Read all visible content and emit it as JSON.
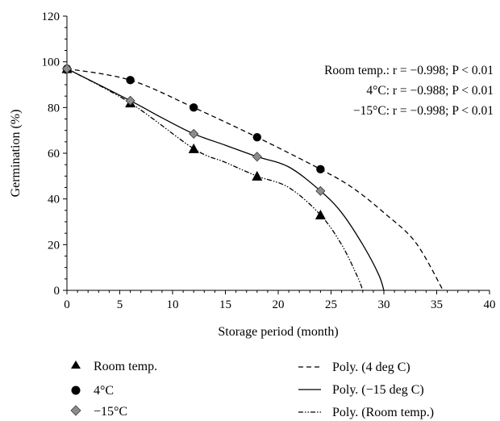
{
  "chart_data": {
    "type": "scatter",
    "xlabel": "Storage period (month)",
    "ylabel": "Germination (%)",
    "xlim": [
      0,
      40
    ],
    "ylim": [
      0,
      120
    ],
    "x_ticks": [
      "0",
      "5",
      "10",
      "15",
      "20",
      "25",
      "30",
      "35",
      "40"
    ],
    "y_ticks": [
      "0",
      "20",
      "40",
      "60",
      "80",
      "100",
      "120"
    ],
    "grid": false,
    "series": [
      {
        "name": "Room temp.",
        "marker": "triangle",
        "color": "#000000",
        "x": [
          0,
          6,
          12,
          18,
          24
        ],
        "y": [
          97,
          82,
          62,
          50,
          33
        ]
      },
      {
        "name": "4°C",
        "marker": "circle",
        "color": "#000000",
        "x": [
          0,
          6,
          12,
          18,
          24
        ],
        "y": [
          97,
          92,
          80,
          67,
          53
        ]
      },
      {
        "name": "−15°C",
        "marker": "diamond",
        "color": "#8c8c8c",
        "x": [
          0,
          6,
          12,
          18,
          24
        ],
        "y": [
          97,
          83,
          68.5,
          58.5,
          43.5
        ]
      }
    ],
    "trendlines": [
      {
        "name": "Poly. (4 deg C)",
        "style": "dashed",
        "x": [
          0,
          6,
          12,
          18,
          24,
          27,
          30,
          33,
          35.6
        ],
        "y": [
          97,
          92,
          80,
          67,
          53,
          45,
          34,
          21,
          0
        ]
      },
      {
        "name": "Poly. (−15 deg C)",
        "style": "solid",
        "x": [
          0,
          6,
          9,
          12,
          15,
          18,
          21,
          24,
          26,
          28,
          29.5,
          30
        ],
        "y": [
          97,
          83,
          75.5,
          68.5,
          63.5,
          58.5,
          54,
          43.5,
          34,
          20,
          7,
          0
        ]
      },
      {
        "name": "Poly. (Room temp.)",
        "style": "dash-dot-dot",
        "x": [
          0,
          6,
          12,
          15,
          18,
          21,
          24,
          26,
          27.5,
          28
        ],
        "y": [
          97,
          82,
          62,
          56,
          50,
          45,
          33,
          20,
          6,
          0
        ]
      }
    ],
    "annotations": [
      "Room temp.: r = −0.998; P < 0.01",
      "4°C: r = −0.988; P < 0.01",
      "−15°C: r = −0.998; P < 0.01"
    ],
    "legend_position": "bottom",
    "legend_left": [
      "Room temp.",
      "4°C",
      "−15°C"
    ],
    "legend_right": [
      "Poly. (4 deg C)",
      "Poly. (−15 deg C)",
      "Poly. (Room temp.)"
    ]
  }
}
